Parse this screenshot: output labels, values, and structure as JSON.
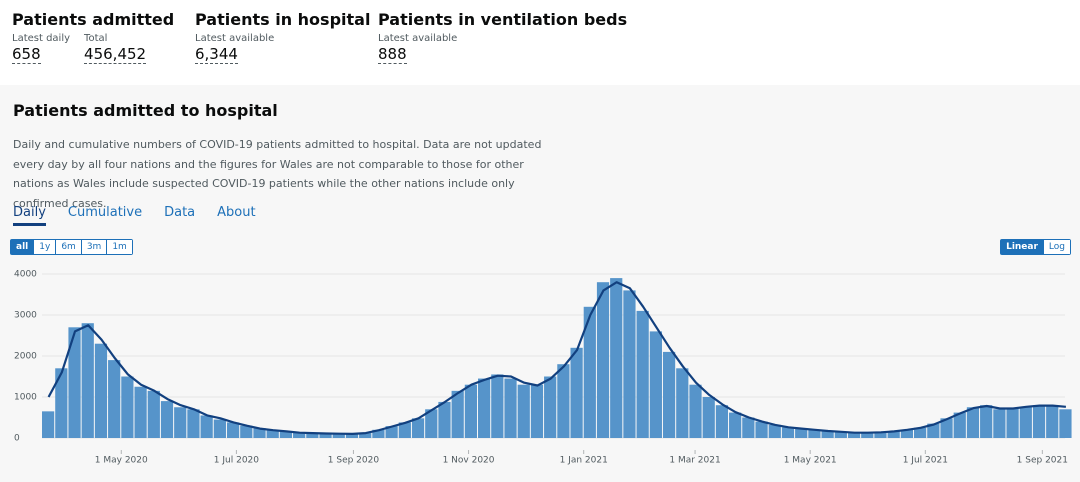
{
  "headline": {
    "items": [
      {
        "title": "Patients admitted",
        "metrics": [
          {
            "label": "Latest daily",
            "value": "658"
          },
          {
            "label": "Total",
            "value": "456,452"
          }
        ]
      },
      {
        "title": "Patients in hospital",
        "metrics": [
          {
            "label": "Latest available",
            "value": "6,344"
          }
        ]
      },
      {
        "title": "Patients in ventilation beds",
        "metrics": [
          {
            "label": "Latest available",
            "value": "888"
          }
        ]
      }
    ]
  },
  "card": {
    "title": "Patients admitted to hospital",
    "description": "Daily and cumulative numbers of COVID-19 patients admitted to hospital. Data are not updated every day by all four nations and the figures for Wales are not comparable to those for other nations as Wales include suspected COVID-19 patients while the other nations include only confirmed cases.",
    "tabs": [
      "Daily",
      "Cumulative",
      "Data",
      "About"
    ],
    "ranges": [
      "all",
      "1y",
      "6m",
      "3m",
      "1m"
    ],
    "scales": [
      "Linear",
      "Log"
    ]
  },
  "chart_data": {
    "type": "bar",
    "color": "#5694ca",
    "line_color": "#12407f",
    "x": [
      "2020-03-20",
      "2020-03-27",
      "2020-04-03",
      "2020-04-10",
      "2020-04-17",
      "2020-04-24",
      "2020-05-01",
      "2020-05-08",
      "2020-05-15",
      "2020-05-22",
      "2020-05-29",
      "2020-06-05",
      "2020-06-12",
      "2020-06-19",
      "2020-06-26",
      "2020-07-03",
      "2020-07-10",
      "2020-07-17",
      "2020-07-24",
      "2020-07-31",
      "2020-08-07",
      "2020-08-14",
      "2020-08-21",
      "2020-08-28",
      "2020-09-04",
      "2020-09-11",
      "2020-09-18",
      "2020-09-25",
      "2020-10-02",
      "2020-10-09",
      "2020-10-16",
      "2020-10-23",
      "2020-10-30",
      "2020-11-06",
      "2020-11-13",
      "2020-11-20",
      "2020-11-27",
      "2020-12-04",
      "2020-12-11",
      "2020-12-18",
      "2020-12-25",
      "2021-01-01",
      "2021-01-08",
      "2021-01-15",
      "2021-01-22",
      "2021-01-29",
      "2021-02-05",
      "2021-02-12",
      "2021-02-19",
      "2021-02-26",
      "2021-03-05",
      "2021-03-12",
      "2021-03-19",
      "2021-03-26",
      "2021-04-02",
      "2021-04-09",
      "2021-04-16",
      "2021-04-23",
      "2021-04-30",
      "2021-05-07",
      "2021-05-14",
      "2021-05-21",
      "2021-05-28",
      "2021-06-04",
      "2021-06-11",
      "2021-06-18",
      "2021-06-25",
      "2021-07-02",
      "2021-07-09",
      "2021-07-16",
      "2021-07-23",
      "2021-07-30",
      "2021-08-06",
      "2021-08-13",
      "2021-08-20",
      "2021-08-27",
      "2021-09-03",
      "2021-09-10"
    ],
    "values": [
      650,
      1700,
      2700,
      2800,
      2300,
      1900,
      1500,
      1250,
      1150,
      900,
      750,
      700,
      550,
      450,
      380,
      300,
      240,
      190,
      160,
      130,
      120,
      110,
      100,
      100,
      120,
      200,
      290,
      380,
      480,
      700,
      880,
      1150,
      1300,
      1450,
      1550,
      1450,
      1300,
      1300,
      1500,
      1800,
      2200,
      3200,
      3800,
      3900,
      3600,
      3100,
      2600,
      2100,
      1700,
      1300,
      1000,
      800,
      620,
      500,
      400,
      320,
      260,
      230,
      200,
      170,
      150,
      130,
      130,
      140,
      160,
      200,
      250,
      350,
      480,
      620,
      750,
      800,
      700,
      720,
      760,
      800,
      780,
      700
    ],
    "average_values": [
      1000,
      1600,
      2600,
      2750,
      2400,
      1950,
      1550,
      1300,
      1150,
      950,
      800,
      700,
      550,
      480,
      380,
      300,
      230,
      190,
      160,
      130,
      120,
      110,
      105,
      100,
      120,
      190,
      280,
      370,
      480,
      680,
      880,
      1100,
      1300,
      1420,
      1520,
      1500,
      1350,
      1280,
      1450,
      1750,
      2150,
      3000,
      3600,
      3800,
      3650,
      3200,
      2700,
      2200,
      1750,
      1350,
      1050,
      820,
      630,
      500,
      400,
      320,
      260,
      230,
      200,
      170,
      150,
      130,
      130,
      140,
      160,
      200,
      250,
      330,
      460,
      600,
      730,
      780,
      720,
      720,
      760,
      790,
      790,
      760
    ],
    "xlim": [
      "2020-03-20",
      "2021-09-13"
    ],
    "xticks": [
      {
        "value": "2020-05-01",
        "label": "1 May 2020"
      },
      {
        "value": "2020-07-01",
        "label": "1 Jul 2020"
      },
      {
        "value": "2020-09-01",
        "label": "1 Sep 2020"
      },
      {
        "value": "2020-11-01",
        "label": "1 Nov 2020"
      },
      {
        "value": "2021-01-01",
        "label": "1 Jan 2021"
      },
      {
        "value": "2021-03-01",
        "label": "1 Mar 2021"
      },
      {
        "value": "2021-05-01",
        "label": "1 May 2021"
      },
      {
        "value": "2021-07-01",
        "label": "1 Jul 2021"
      },
      {
        "value": "2021-09-01",
        "label": "1 Sep 2021"
      }
    ],
    "ylim": [
      0,
      4000
    ],
    "yticks": [
      0,
      1000,
      2000,
      3000,
      4000
    ],
    "grid": true
  }
}
